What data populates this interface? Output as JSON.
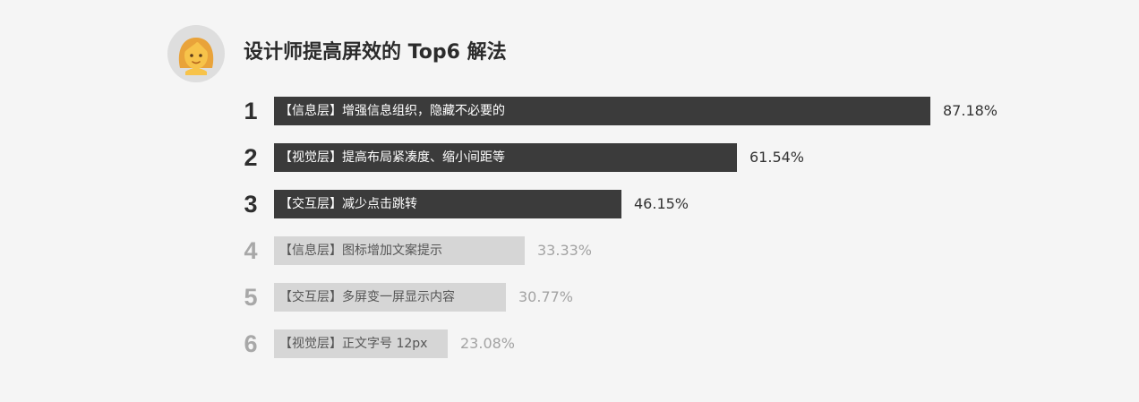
{
  "header": {
    "avatar_icon": "woman-emoji-icon",
    "title": "设计师提高屏效的 Top6 解法"
  },
  "chart_data": {
    "type": "bar",
    "orientation": "horizontal",
    "title": "设计师提高屏效的 Top6 解法",
    "xlim": [
      0,
      100
    ],
    "grid": false,
    "legend": "none",
    "ranks": [
      "1",
      "2",
      "3",
      "4",
      "5",
      "6"
    ],
    "categories": [
      "【信息层】增强信息组织，隐藏不必要的",
      "【视觉层】提高布局紧凑度、缩小间距等",
      "【交互层】减少点击跳转",
      "【信息层】图标增加文案提示",
      "【交互层】多屏变一屏显示内容",
      "【视觉层】正文字号 12px"
    ],
    "values": [
      87.18,
      61.54,
      46.15,
      33.33,
      30.77,
      23.08
    ],
    "value_labels": [
      "87.18%",
      "61.54%",
      "46.15%",
      "33.33%",
      "30.77%",
      "23.08%"
    ],
    "highlight_top": 3,
    "colors": {
      "strong_bar": "#3b3b3b",
      "weak_bar": "#d6d6d6",
      "strong_rank": "#2e2e2e",
      "weak_rank": "#a8a8a8"
    }
  }
}
